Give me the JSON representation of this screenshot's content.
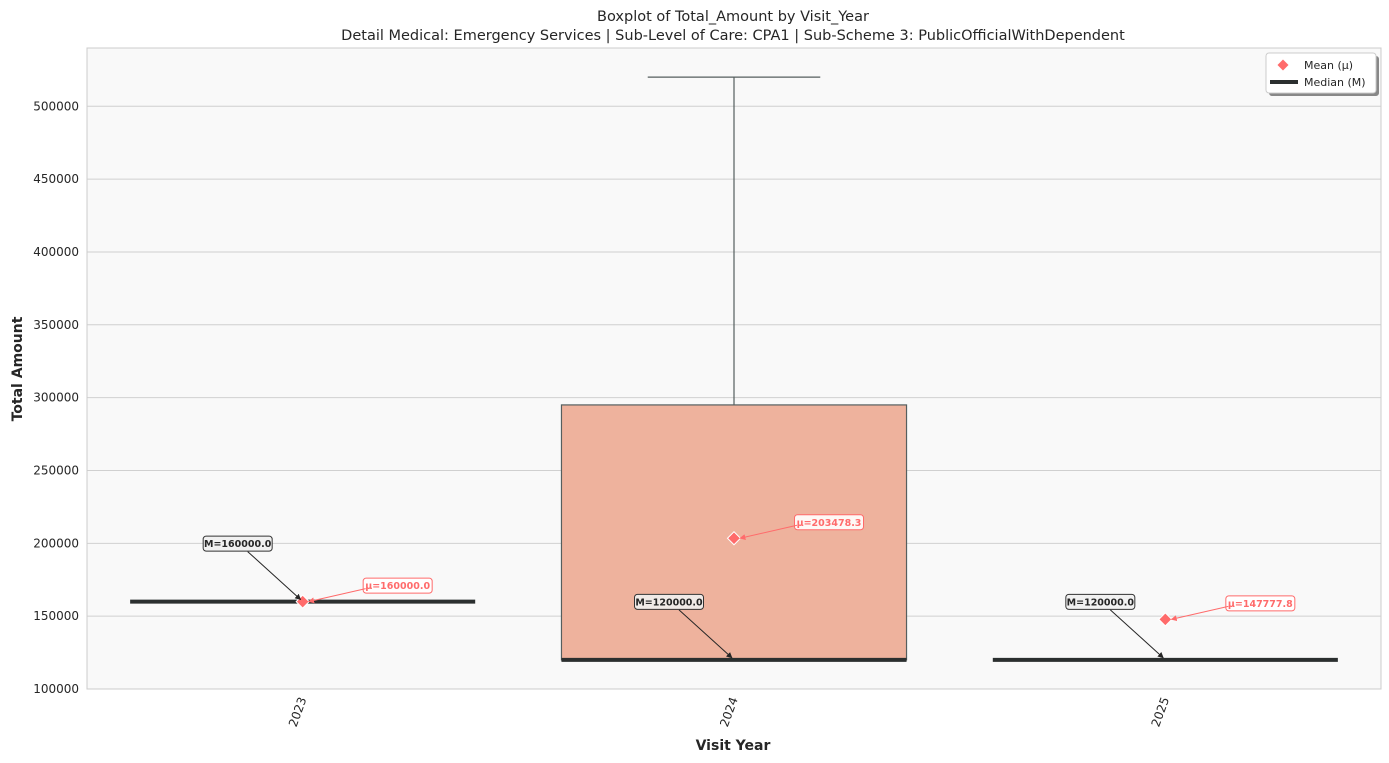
{
  "chart_data": {
    "type": "box",
    "title": "Boxplot of Total_Amount by Visit_Year",
    "subtitle": "Detail Medical: Emergency Services | Sub-Level of Care: CPA1 | Sub-Scheme 3: PublicOfficialWithDependent",
    "xlabel": "Visit Year",
    "ylabel": "Total Amount",
    "ylim": [
      100000,
      540000
    ],
    "yticks": [
      100000,
      150000,
      200000,
      250000,
      300000,
      350000,
      400000,
      450000,
      500000
    ],
    "grid": true,
    "legend_position": "top-right",
    "legend": {
      "mean_label": "Mean (μ)",
      "median_label": "Median (M)"
    },
    "categories": [
      "2023",
      "2024",
      "2025"
    ],
    "boxes": [
      {
        "category": "2023",
        "whisker_low": 160000,
        "q1": 160000,
        "median": 160000,
        "q3": 160000,
        "whisker_high": 160000,
        "mean": 160000,
        "median_label": "M=160000.0",
        "mean_label": "μ=160000.0"
      },
      {
        "category": "2024",
        "whisker_low": 120000,
        "q1": 120000,
        "median": 120000,
        "q3": 295000,
        "whisker_high": 520000,
        "mean": 203478.3,
        "median_label": "M=120000.0",
        "mean_label": "μ=203478.3"
      },
      {
        "category": "2025",
        "whisker_low": 120000,
        "q1": 120000,
        "median": 120000,
        "q3": 120000,
        "whisker_high": 120000,
        "mean": 147777.8,
        "median_label": "M=120000.0",
        "mean_label": "μ=147777.8"
      }
    ],
    "colors": {
      "box_fill": "#eeb29d",
      "box_edge": "#555e5e",
      "median": "#2b2f2f",
      "mean": "#ff6b6b",
      "plot_bg": "#f9f9f9",
      "grid": "#d0d0d0"
    }
  }
}
